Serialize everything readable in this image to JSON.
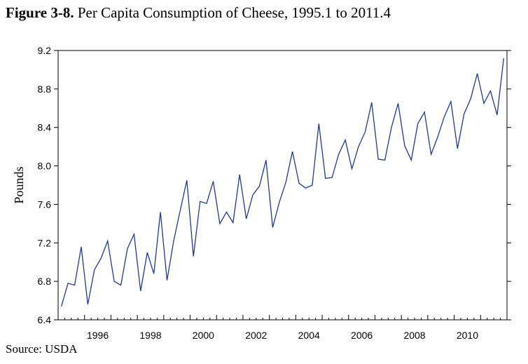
{
  "title_prefix": "Figure 3-8.",
  "title_rest": " Per Capita Consumption of Cheese, 1995.1 to 2011.4",
  "source": "Source:  USDA",
  "colors": {
    "line": "#1f3a93",
    "axis": "#000000"
  },
  "chart_data": {
    "type": "line",
    "title": "Figure 3-8. Per Capita Consumption of Cheese, 1995.1 to 2011.4",
    "xlabel": "",
    "ylabel": "Pounds",
    "xlim": [
      1995.0,
      2012.0
    ],
    "ylim": [
      6.4,
      9.2
    ],
    "yticks": [
      "6.4",
      "6.8",
      "7.2",
      "7.6",
      "8.0",
      "8.4",
      "8.8",
      "9.2"
    ],
    "xticks": [
      "1996",
      "1998",
      "2000",
      "2002",
      "2004",
      "2006",
      "2008",
      "2010"
    ],
    "grid": false,
    "series": [
      {
        "x": [
          "1995.1",
          "1995.2",
          "1995.3",
          "1995.4",
          "1996.1",
          "1996.2",
          "1996.3",
          "1996.4",
          "1997.1",
          "1997.2",
          "1997.3",
          "1997.4",
          "1998.1",
          "1998.2",
          "1998.3",
          "1998.4",
          "1999.1",
          "1999.2",
          "1999.3",
          "1999.4",
          "2000.1",
          "2000.2",
          "2000.3",
          "2000.4",
          "2001.1",
          "2001.2",
          "2001.3",
          "2001.4",
          "2002.1",
          "2002.2",
          "2002.3",
          "2002.4",
          "2003.1",
          "2003.2",
          "2003.3",
          "2003.4",
          "2004.1",
          "2004.2",
          "2004.3",
          "2004.4",
          "2005.1",
          "2005.2",
          "2005.3",
          "2005.4",
          "2006.1",
          "2006.2",
          "2006.3",
          "2006.4",
          "2007.1",
          "2007.2",
          "2007.3",
          "2007.4",
          "2008.1",
          "2008.2",
          "2008.3",
          "2008.4",
          "2009.1",
          "2009.2",
          "2009.3",
          "2009.4",
          "2010.1",
          "2010.2",
          "2010.3",
          "2010.4",
          "2011.1",
          "2011.2",
          "2011.3",
          "2011.4"
        ],
        "values": [
          6.54,
          6.78,
          6.76,
          7.16,
          6.56,
          6.92,
          7.04,
          7.22,
          6.8,
          6.76,
          7.14,
          7.29,
          6.7,
          7.1,
          6.88,
          7.52,
          6.81,
          7.22,
          7.54,
          7.85,
          7.06,
          7.63,
          7.61,
          7.84,
          7.4,
          7.52,
          7.41,
          7.91,
          7.45,
          7.7,
          7.79,
          8.06,
          7.36,
          7.62,
          7.83,
          8.15,
          7.82,
          7.77,
          7.8,
          8.44,
          7.87,
          7.88,
          8.12,
          8.27,
          7.97,
          8.2,
          8.35,
          8.66,
          8.07,
          8.06,
          8.4,
          8.65,
          8.21,
          8.06,
          8.44,
          8.56,
          8.12,
          8.3,
          8.51,
          8.67,
          8.18,
          8.54,
          8.7,
          8.96,
          8.65,
          8.78,
          8.53,
          9.12
        ]
      }
    ]
  }
}
